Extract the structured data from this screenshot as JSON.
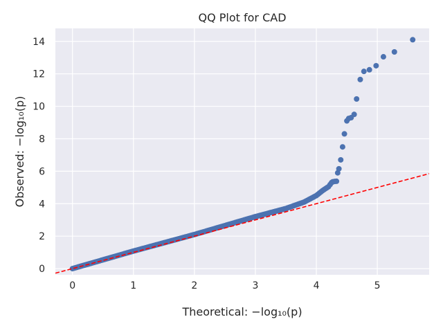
{
  "chart_data": {
    "type": "scatter",
    "title": "QQ Plot for CAD",
    "xlabel": "Theoretical: −log₁₀(p)",
    "ylabel": "Observed: −log₁₀(p)",
    "xlim": [
      -0.28,
      5.85
    ],
    "ylim": [
      -0.38,
      14.8
    ],
    "xticks": [
      "0",
      "1",
      "2",
      "3",
      "4",
      "5"
    ],
    "yticks": [
      "0",
      "2",
      "4",
      "6",
      "8",
      "10",
      "12",
      "14"
    ],
    "grid": true,
    "background": "#eaeaf2",
    "point_color": "#4c72b0",
    "reference_line": {
      "style": "dashed",
      "color": "#ff0000",
      "slope": 1.0,
      "intercept": 0.0
    },
    "dense_band": {
      "x_start": 0.0,
      "x_end": 4.25,
      "points": [
        [
          0.0,
          0.0
        ],
        [
          1.0,
          1.08
        ],
        [
          2.0,
          2.1
        ],
        [
          3.0,
          3.2
        ],
        [
          3.5,
          3.7
        ],
        [
          3.8,
          4.1
        ],
        [
          4.0,
          4.5
        ],
        [
          4.1,
          4.8
        ],
        [
          4.2,
          5.05
        ],
        [
          4.25,
          5.3
        ]
      ]
    },
    "points": [
      {
        "x": 4.27,
        "y": 5.35
      },
      {
        "x": 4.3,
        "y": 5.37
      },
      {
        "x": 4.33,
        "y": 5.38
      },
      {
        "x": 4.35,
        "y": 5.9
      },
      {
        "x": 4.37,
        "y": 6.15
      },
      {
        "x": 4.4,
        "y": 6.7
      },
      {
        "x": 4.43,
        "y": 7.5
      },
      {
        "x": 4.46,
        "y": 8.3
      },
      {
        "x": 4.5,
        "y": 9.1
      },
      {
        "x": 4.53,
        "y": 9.25
      },
      {
        "x": 4.57,
        "y": 9.3
      },
      {
        "x": 4.62,
        "y": 9.5
      },
      {
        "x": 4.66,
        "y": 10.45
      },
      {
        "x": 4.72,
        "y": 11.65
      },
      {
        "x": 4.78,
        "y": 12.15
      },
      {
        "x": 4.87,
        "y": 12.25
      },
      {
        "x": 4.98,
        "y": 12.5
      },
      {
        "x": 5.1,
        "y": 13.05
      },
      {
        "x": 5.28,
        "y": 13.35
      },
      {
        "x": 5.58,
        "y": 14.1
      }
    ]
  }
}
